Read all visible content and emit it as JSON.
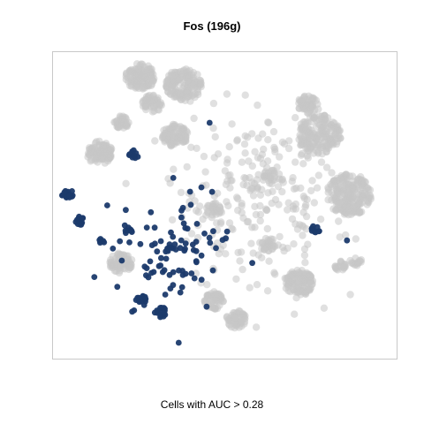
{
  "chart_data": {
    "type": "scatter",
    "title": "Fos (196g)",
    "caption": "Cells with AUC > 0.28",
    "axes_shown": false,
    "colors": {
      "background_cells": "#c6c6c6",
      "highlighted_cells": "#1b3a6b",
      "frame": "#c8c8c8"
    },
    "series": [
      {
        "name": "",
        "role": "all cells",
        "color": "#c6c6c6",
        "clusters": [
          {
            "x": 0.245,
            "y": 0.938,
            "r": 0.045,
            "n": 120
          },
          {
            "x": 0.376,
            "y": 0.91,
            "r": 0.055,
            "n": 150
          },
          {
            "x": 0.28,
            "y": 0.845,
            "r": 0.03,
            "n": 50
          },
          {
            "x": 0.754,
            "y": 0.844,
            "r": 0.032,
            "n": 50
          },
          {
            "x": 0.187,
            "y": 0.782,
            "r": 0.022,
            "n": 35
          },
          {
            "x": 0.35,
            "y": 0.738,
            "r": 0.04,
            "n": 80
          },
          {
            "x": 0.788,
            "y": 0.74,
            "r": 0.068,
            "n": 170
          },
          {
            "x": 0.12,
            "y": 0.678,
            "r": 0.04,
            "n": 90
          },
          {
            "x": 0.88,
            "y": 0.535,
            "r": 0.07,
            "n": 200
          },
          {
            "x": 0.185,
            "y": 0.302,
            "r": 0.035,
            "n": 70
          },
          {
            "x": 0.727,
            "y": 0.235,
            "r": 0.045,
            "n": 110
          },
          {
            "x": 0.47,
            "y": 0.175,
            "r": 0.03,
            "n": 50
          },
          {
            "x": 0.536,
            "y": 0.11,
            "r": 0.03,
            "n": 50
          },
          {
            "x": 0.63,
            "y": 0.365,
            "r": 0.025,
            "n": 30
          },
          {
            "x": 0.467,
            "y": 0.48,
            "r": 0.025,
            "n": 25
          },
          {
            "x": 0.64,
            "y": 0.6,
            "r": 0.02,
            "n": 20
          },
          {
            "x": 0.855,
            "y": 0.29,
            "r": 0.018,
            "n": 20
          },
          {
            "x": 0.9,
            "y": 0.31,
            "r": 0.018,
            "n": 15
          }
        ],
        "scatter_region": {
          "cx": 0.6,
          "cy": 0.52,
          "rx": 0.28,
          "ry": 0.3,
          "n": 260
        }
      },
      {
        "name": "",
        "role": "cells with AUC > 0.28",
        "color": "#1b3a6b",
        "clusters": [
          {
            "x": 0.024,
            "y": 0.535,
            "r": 0.018,
            "n": 16
          },
          {
            "x": 0.058,
            "y": 0.445,
            "r": 0.016,
            "n": 14
          },
          {
            "x": 0.224,
            "y": 0.672,
            "r": 0.015,
            "n": 12
          },
          {
            "x": 0.208,
            "y": 0.413,
            "r": 0.013,
            "n": 8
          },
          {
            "x": 0.125,
            "y": 0.378,
            "r": 0.012,
            "n": 6
          },
          {
            "x": 0.779,
            "y": 0.418,
            "r": 0.015,
            "n": 10
          },
          {
            "x": 0.249,
            "y": 0.176,
            "r": 0.015,
            "n": 10
          },
          {
            "x": 0.306,
            "y": 0.135,
            "r": 0.018,
            "n": 18
          }
        ],
        "scatter_region": {
          "cx": 0.34,
          "cy": 0.33,
          "rx": 0.15,
          "ry": 0.2,
          "n": 95
        },
        "singles": [
          {
            "x": 0.585,
            "y": 0.302
          },
          {
            "x": 0.873,
            "y": 0.379
          },
          {
            "x": 0.43,
            "y": 0.56
          },
          {
            "x": 0.455,
            "y": 0.78
          }
        ]
      }
    ]
  }
}
